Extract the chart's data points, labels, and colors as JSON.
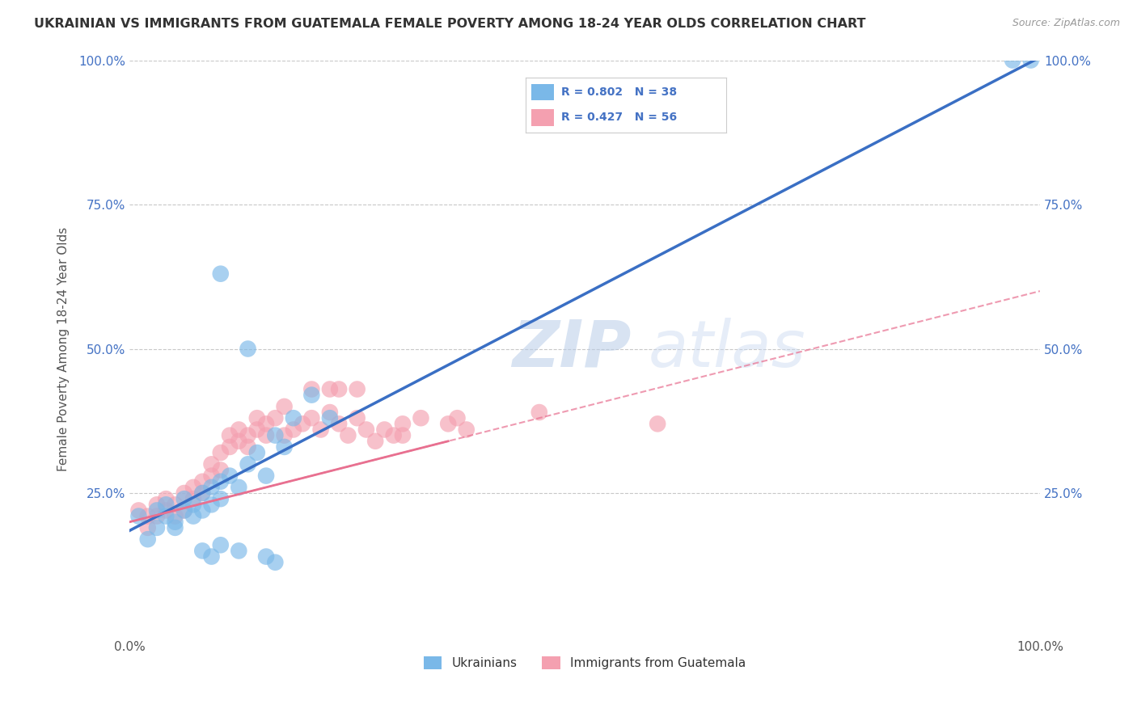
{
  "title": "UKRAINIAN VS IMMIGRANTS FROM GUATEMALA FEMALE POVERTY AMONG 18-24 YEAR OLDS CORRELATION CHART",
  "source": "Source: ZipAtlas.com",
  "ylabel": "Female Poverty Among 18-24 Year Olds",
  "xlabel": "",
  "background_color": "#ffffff",
  "watermark_zip": "ZIP",
  "watermark_atlas": "atlas",
  "xlim": [
    0,
    1.0
  ],
  "ylim": [
    0,
    1.0
  ],
  "xtick_positions": [
    0.0,
    1.0
  ],
  "xtick_labels": [
    "0.0%",
    "100.0%"
  ],
  "ytick_positions": [
    0.25,
    0.5,
    0.75,
    1.0
  ],
  "ytick_labels": [
    "25.0%",
    "50.0%",
    "75.0%",
    "100.0%"
  ],
  "blue_R": "0.802",
  "blue_N": "38",
  "pink_R": "0.427",
  "pink_N": "56",
  "blue_color": "#7ab8e8",
  "pink_color": "#f4a0b0",
  "blue_line_color": "#3a6fc4",
  "pink_line_color": "#e87090",
  "tick_color": "#4472c4",
  "title_color": "#333333",
  "blue_scatter": [
    [
      0.01,
      0.21
    ],
    [
      0.02,
      0.17
    ],
    [
      0.03,
      0.22
    ],
    [
      0.03,
      0.19
    ],
    [
      0.04,
      0.21
    ],
    [
      0.04,
      0.23
    ],
    [
      0.05,
      0.2
    ],
    [
      0.05,
      0.19
    ],
    [
      0.06,
      0.22
    ],
    [
      0.06,
      0.24
    ],
    [
      0.07,
      0.23
    ],
    [
      0.07,
      0.21
    ],
    [
      0.08,
      0.25
    ],
    [
      0.08,
      0.22
    ],
    [
      0.09,
      0.26
    ],
    [
      0.09,
      0.23
    ],
    [
      0.1,
      0.27
    ],
    [
      0.1,
      0.24
    ],
    [
      0.11,
      0.28
    ],
    [
      0.12,
      0.26
    ],
    [
      0.13,
      0.3
    ],
    [
      0.14,
      0.32
    ],
    [
      0.15,
      0.28
    ],
    [
      0.16,
      0.35
    ],
    [
      0.17,
      0.33
    ],
    [
      0.18,
      0.38
    ],
    [
      0.2,
      0.42
    ],
    [
      0.22,
      0.38
    ],
    [
      0.1,
      0.63
    ],
    [
      0.13,
      0.5
    ],
    [
      0.08,
      0.15
    ],
    [
      0.09,
      0.14
    ],
    [
      0.1,
      0.16
    ],
    [
      0.12,
      0.15
    ],
    [
      0.15,
      0.14
    ],
    [
      0.16,
      0.13
    ],
    [
      0.97,
      1.0
    ],
    [
      0.99,
      1.0
    ]
  ],
  "pink_scatter": [
    [
      0.01,
      0.22
    ],
    [
      0.02,
      0.21
    ],
    [
      0.02,
      0.19
    ],
    [
      0.03,
      0.23
    ],
    [
      0.03,
      0.21
    ],
    [
      0.04,
      0.24
    ],
    [
      0.04,
      0.22
    ],
    [
      0.05,
      0.23
    ],
    [
      0.05,
      0.21
    ],
    [
      0.06,
      0.25
    ],
    [
      0.06,
      0.22
    ],
    [
      0.07,
      0.26
    ],
    [
      0.07,
      0.24
    ],
    [
      0.08,
      0.27
    ],
    [
      0.08,
      0.25
    ],
    [
      0.09,
      0.28
    ],
    [
      0.09,
      0.3
    ],
    [
      0.1,
      0.29
    ],
    [
      0.1,
      0.32
    ],
    [
      0.11,
      0.33
    ],
    [
      0.11,
      0.35
    ],
    [
      0.12,
      0.34
    ],
    [
      0.12,
      0.36
    ],
    [
      0.13,
      0.35
    ],
    [
      0.13,
      0.33
    ],
    [
      0.14,
      0.36
    ],
    [
      0.14,
      0.38
    ],
    [
      0.15,
      0.37
    ],
    [
      0.15,
      0.35
    ],
    [
      0.16,
      0.38
    ],
    [
      0.17,
      0.4
    ],
    [
      0.17,
      0.35
    ],
    [
      0.18,
      0.36
    ],
    [
      0.19,
      0.37
    ],
    [
      0.2,
      0.38
    ],
    [
      0.21,
      0.36
    ],
    [
      0.22,
      0.39
    ],
    [
      0.23,
      0.37
    ],
    [
      0.24,
      0.35
    ],
    [
      0.25,
      0.38
    ],
    [
      0.26,
      0.36
    ],
    [
      0.27,
      0.34
    ],
    [
      0.28,
      0.36
    ],
    [
      0.29,
      0.35
    ],
    [
      0.3,
      0.37
    ],
    [
      0.32,
      0.38
    ],
    [
      0.2,
      0.43
    ],
    [
      0.22,
      0.43
    ],
    [
      0.23,
      0.43
    ],
    [
      0.25,
      0.43
    ],
    [
      0.3,
      0.35
    ],
    [
      0.35,
      0.37
    ],
    [
      0.36,
      0.38
    ],
    [
      0.37,
      0.36
    ],
    [
      0.45,
      0.39
    ],
    [
      0.58,
      0.37
    ]
  ],
  "blue_line_x": [
    0.0,
    1.0
  ],
  "blue_line_y": [
    0.185,
    1.005
  ],
  "pink_line_x": [
    0.0,
    1.0
  ],
  "pink_line_y": [
    0.2,
    0.6
  ]
}
